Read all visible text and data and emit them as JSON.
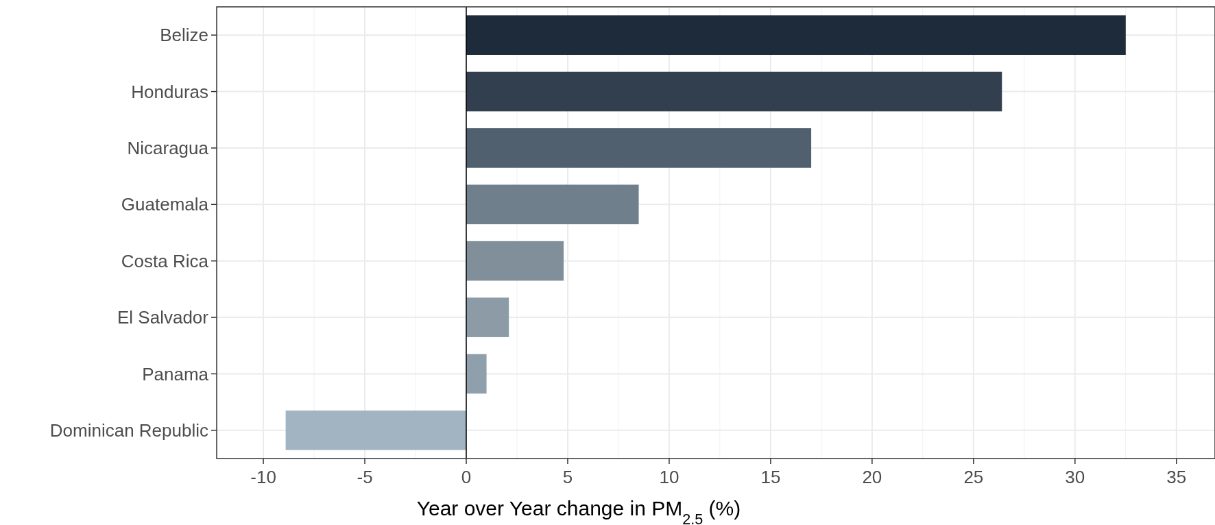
{
  "chart_data": {
    "type": "bar",
    "orientation": "horizontal",
    "xlabel": "Year over Year change in PM$_{2.5}$ (%)",
    "categories": [
      "Belize",
      "Honduras",
      "Nicaragua",
      "Guatemala",
      "Costa Rica",
      "El Salvador",
      "Panama",
      "Dominican Republic"
    ],
    "values": [
      32.5,
      26.4,
      17.0,
      8.5,
      4.8,
      2.1,
      1.0,
      -8.9
    ],
    "colors": [
      "#1e2b3a",
      "#313f4f",
      "#51606f",
      "#6f7f8c",
      "#808f9a",
      "#8c9ba6",
      "#8f9fab",
      "#a2b4c1"
    ],
    "xlim": [
      -12.3,
      36.9
    ],
    "xticks": [
      -10,
      -5,
      0,
      5,
      10,
      15,
      20,
      25,
      30,
      35
    ],
    "grid": true,
    "ref_lines": [
      {
        "axis": "x",
        "value": 0,
        "color": "#000000"
      }
    ]
  }
}
